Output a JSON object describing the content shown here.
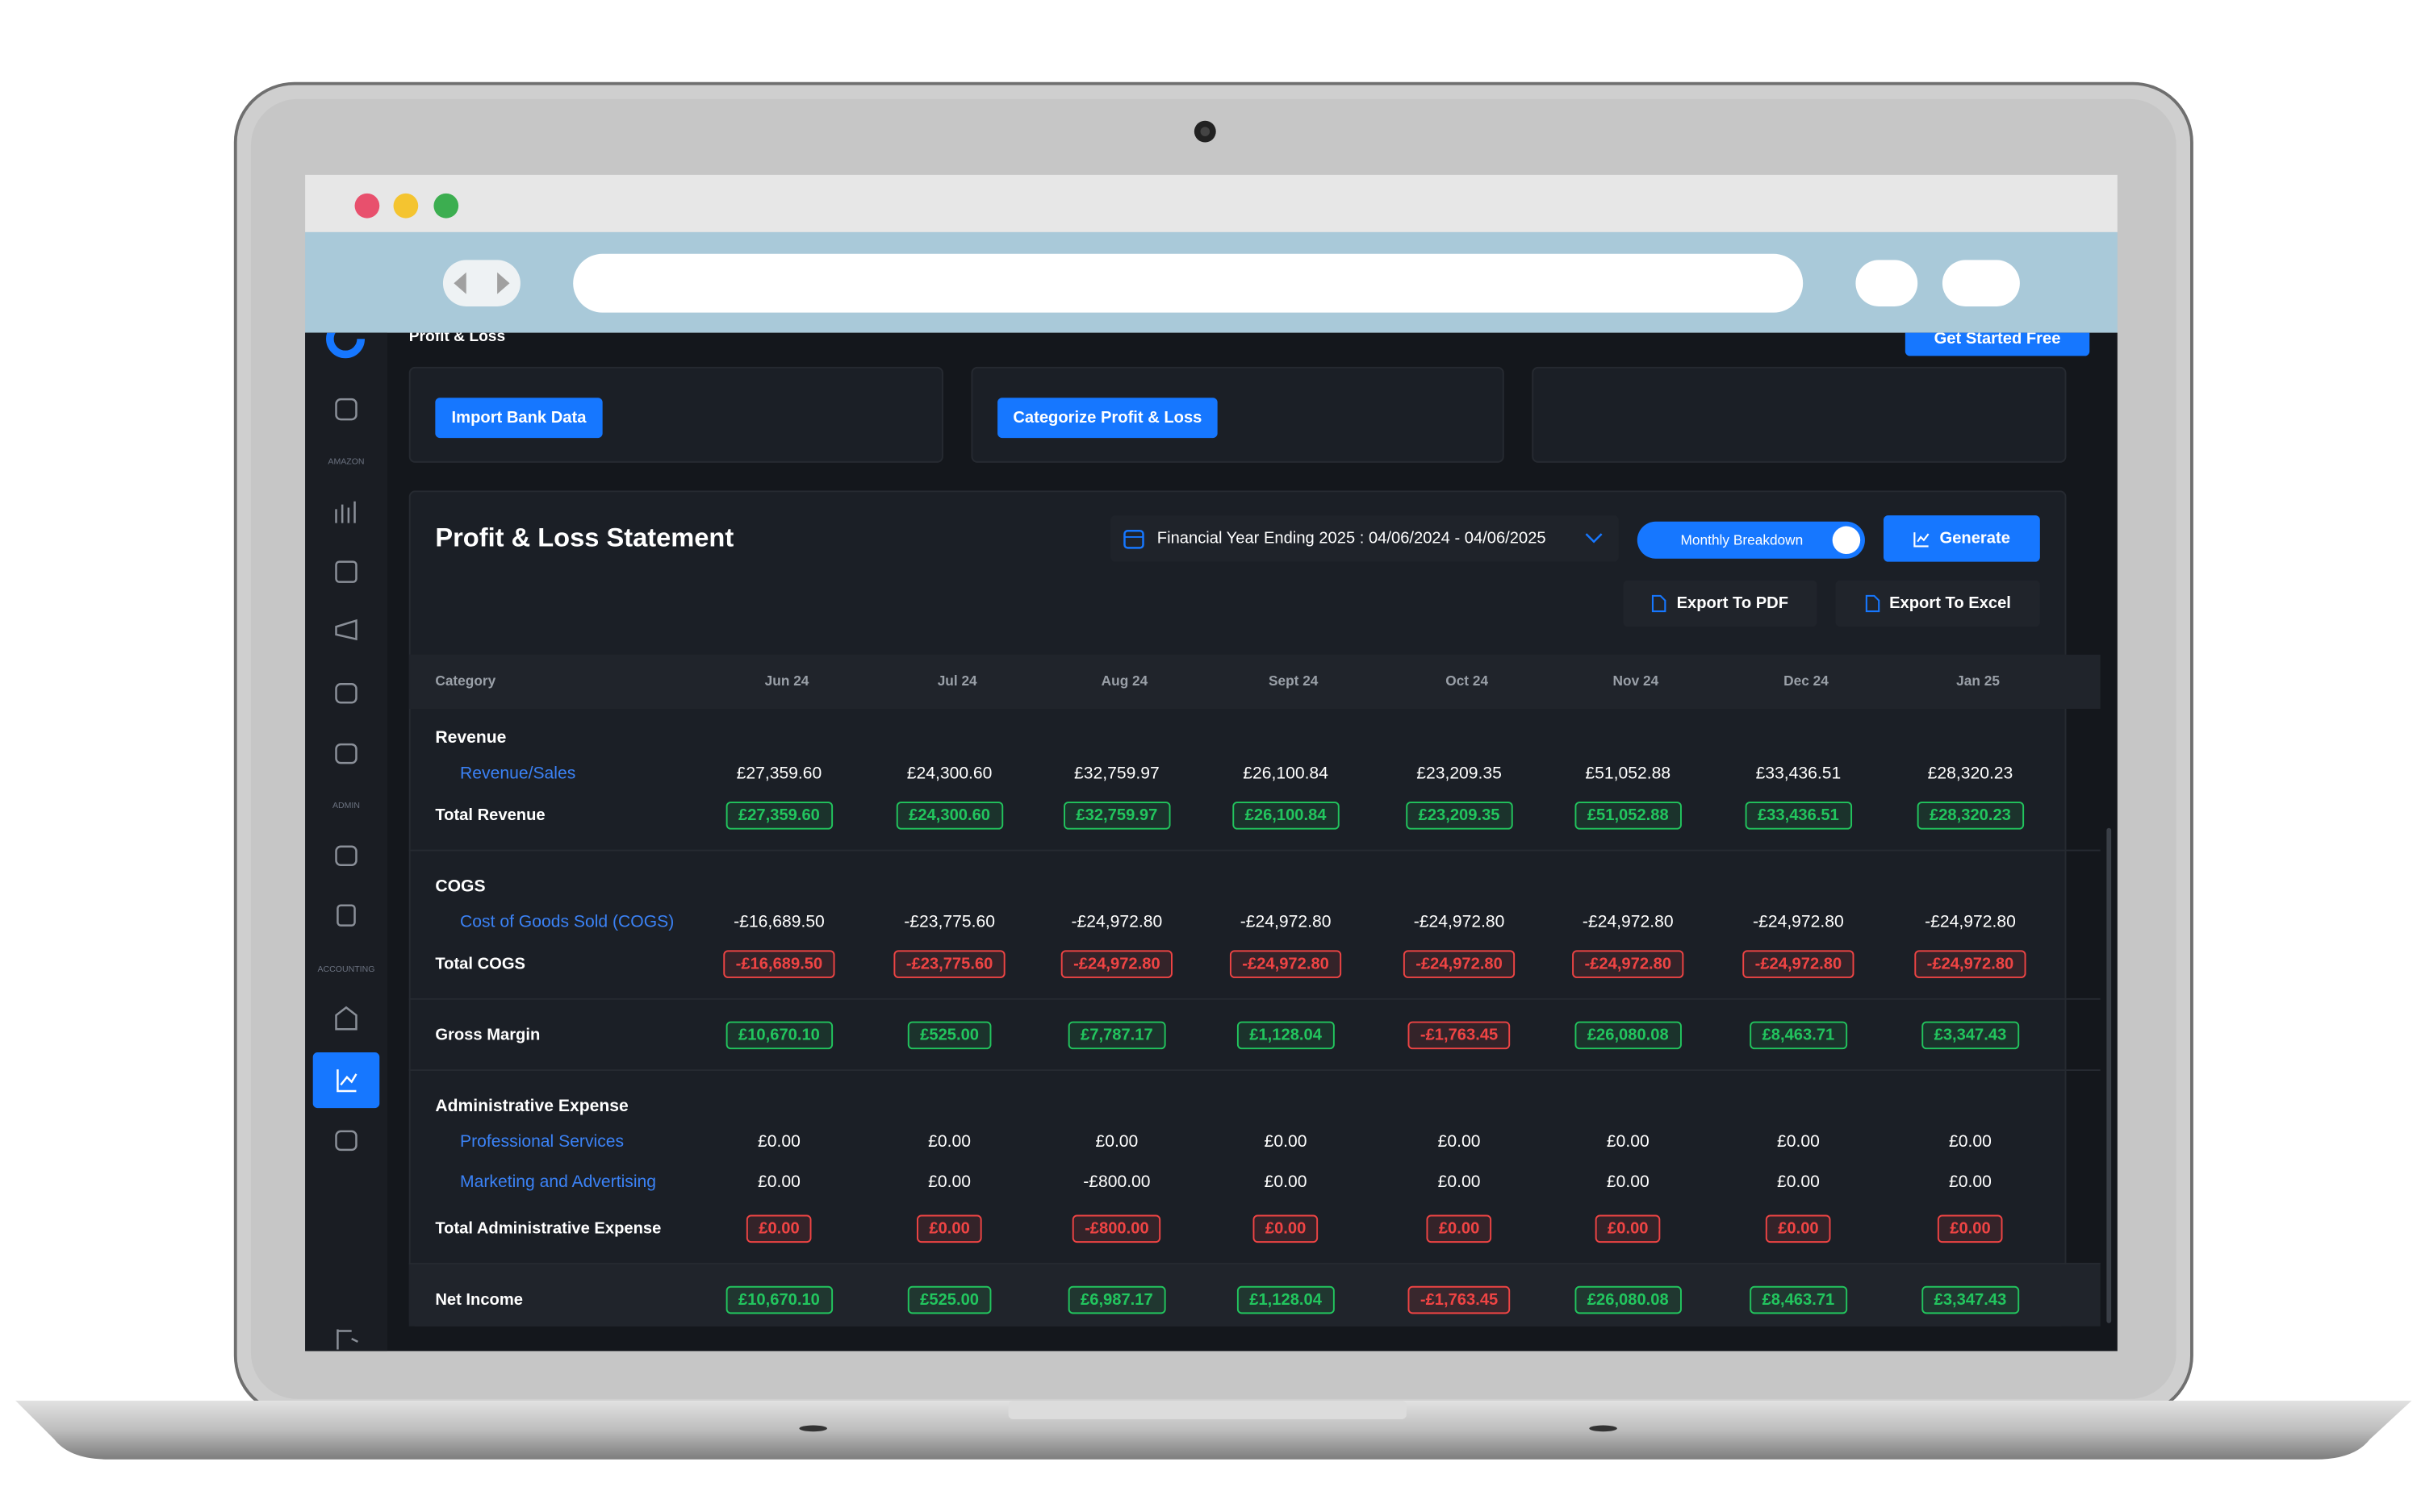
{
  "app": {
    "page_title": "Profit & Loss",
    "cta": "Get Started Free",
    "sidebar_sections": [
      "AMAZON",
      "ADMIN",
      "ACCOUNTING"
    ]
  },
  "cards": [
    "Import Bank Data",
    "Categorize Profit & Loss"
  ],
  "statement": {
    "title": "Profit & Loss Statement",
    "period": "Financial Year Ending 2025 : 04/06/2024 - 04/06/2025",
    "toggle": "Monthly Breakdown",
    "generate": "Generate",
    "export_pdf": "Export To PDF",
    "export_excel": "Export To Excel"
  },
  "table": {
    "columns": [
      "Category",
      "Jun 24",
      "Jul 24",
      "Aug 24",
      "Sept 24",
      "Oct 24",
      "Nov 24",
      "Dec 24",
      "Jan 25"
    ],
    "sections": [
      {
        "title": "Revenue",
        "items": [
          {
            "label": "Revenue/Sales",
            "values": [
              "£27,359.60",
              "£24,300.60",
              "£32,759.97",
              "£26,100.84",
              "£23,209.35",
              "£51,052.88",
              "£33,436.51",
              "£28,320.23"
            ]
          }
        ],
        "total": {
          "label": "Total Revenue",
          "values": [
            "£27,359.60",
            "£24,300.60",
            "£32,759.97",
            "£26,100.84",
            "£23,209.35",
            "£51,052.88",
            "£33,436.51",
            "£28,320.23"
          ],
          "badge_colors": [
            "#22c55e",
            "#22c55e",
            "#22c55e",
            "#22c55e",
            "#22c55e",
            "#22c55e",
            "#22c55e",
            "#22c55e"
          ]
        }
      },
      {
        "title": "COGS",
        "items": [
          {
            "label": "Cost of Goods Sold (COGS)",
            "values": [
              "-£16,689.50",
              "-£23,775.60",
              "-£24,972.80",
              "-£24,972.80",
              "-£24,972.80",
              "-£24,972.80",
              "-£24,972.80",
              "-£24,972.80"
            ]
          }
        ],
        "total": {
          "label": "Total COGS",
          "values": [
            "-£16,689.50",
            "-£23,775.60",
            "-£24,972.80",
            "-£24,972.80",
            "-£24,972.80",
            "-£24,972.80",
            "-£24,972.80",
            "-£24,972.80"
          ],
          "badge_colors": [
            "#ef4444",
            "#ef4444",
            "#ef4444",
            "#ef4444",
            "#ef4444",
            "#ef4444",
            "#ef4444",
            "#ef4444"
          ]
        }
      },
      {
        "label": "Gross Margin",
        "values": [
          "£10,670.10",
          "£525.00",
          "£7,787.17",
          "£1,128.04",
          "-£1,763.45",
          "£26,080.08",
          "£8,463.71",
          "£3,347.43"
        ],
        "badge_colors": [
          "#22c55e",
          "#22c55e",
          "#22c55e",
          "#22c55e",
          "#ef4444",
          "#22c55e",
          "#22c55e",
          "#22c55e"
        ]
      },
      {
        "title": "Administrative Expense",
        "items": [
          {
            "label": "Professional Services",
            "values": [
              "£0.00",
              "£0.00",
              "£0.00",
              "£0.00",
              "£0.00",
              "£0.00",
              "£0.00",
              "£0.00"
            ]
          },
          {
            "label": "Marketing and Advertising",
            "values": [
              "£0.00",
              "£0.00",
              "-£800.00",
              "£0.00",
              "£0.00",
              "£0.00",
              "£0.00",
              "£0.00"
            ]
          }
        ],
        "total": {
          "label": "Total Administrative Expense",
          "values": [
            "£0.00",
            "£0.00",
            "-£800.00",
            "£0.00",
            "£0.00",
            "£0.00",
            "£0.00",
            "£0.00"
          ],
          "badge_colors": [
            "#ef4444",
            "#ef4444",
            "#ef4444",
            "#ef4444",
            "#ef4444",
            "#ef4444",
            "#ef4444",
            "#ef4444"
          ]
        }
      },
      {
        "label": "Net Income",
        "values": [
          "£10,670.10",
          "£525.00",
          "£6,987.17",
          "£1,128.04",
          "-£1,763.45",
          "£26,080.08",
          "£8,463.71",
          "£3,347.43"
        ],
        "badge_colors": [
          "#22c55e",
          "#22c55e",
          "#22c55e",
          "#22c55e",
          "#ef4444",
          "#22c55e",
          "#22c55e",
          "#22c55e"
        ]
      }
    ]
  }
}
